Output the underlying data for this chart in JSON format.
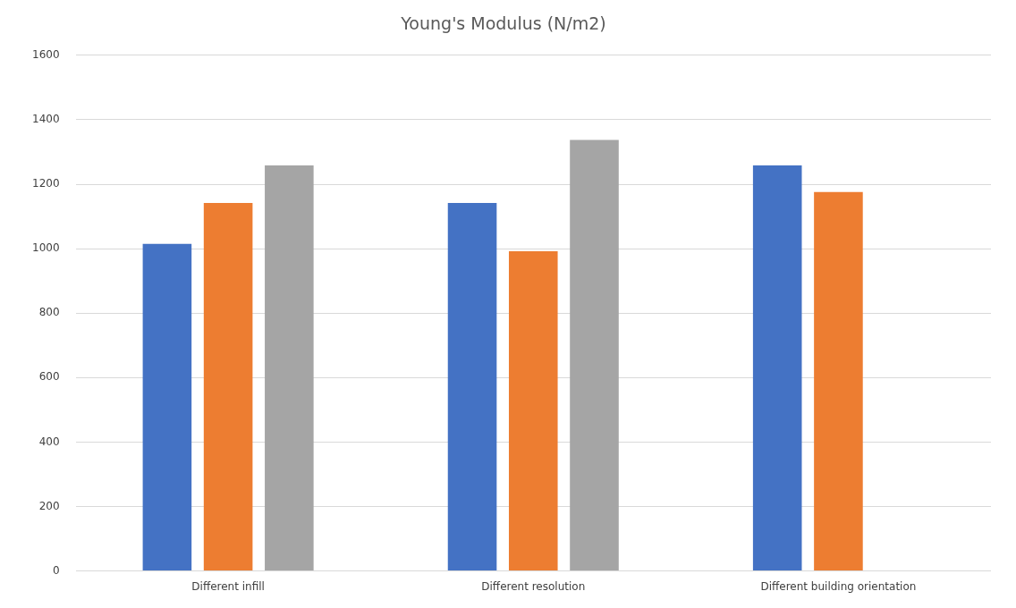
{
  "chart_data": {
    "type": "bar",
    "title": "Young's Modulus (N/m2)",
    "categories": [
      "Different infill",
      "Different resolution",
      "Different building orientation"
    ],
    "series": [
      {
        "color": "#4472c4",
        "values": [
          1015,
          1142,
          1258
        ]
      },
      {
        "color": "#ed7d31",
        "values": [
          1142,
          992,
          1176
        ]
      },
      {
        "color": "#a5a5a5",
        "values": [
          1258,
          1337,
          null
        ]
      }
    ],
    "ylim": [
      0,
      1600
    ],
    "yticks": [
      0,
      200,
      400,
      600,
      800,
      1000,
      1200,
      1400,
      1600
    ],
    "grid": "y",
    "legend": false
  }
}
